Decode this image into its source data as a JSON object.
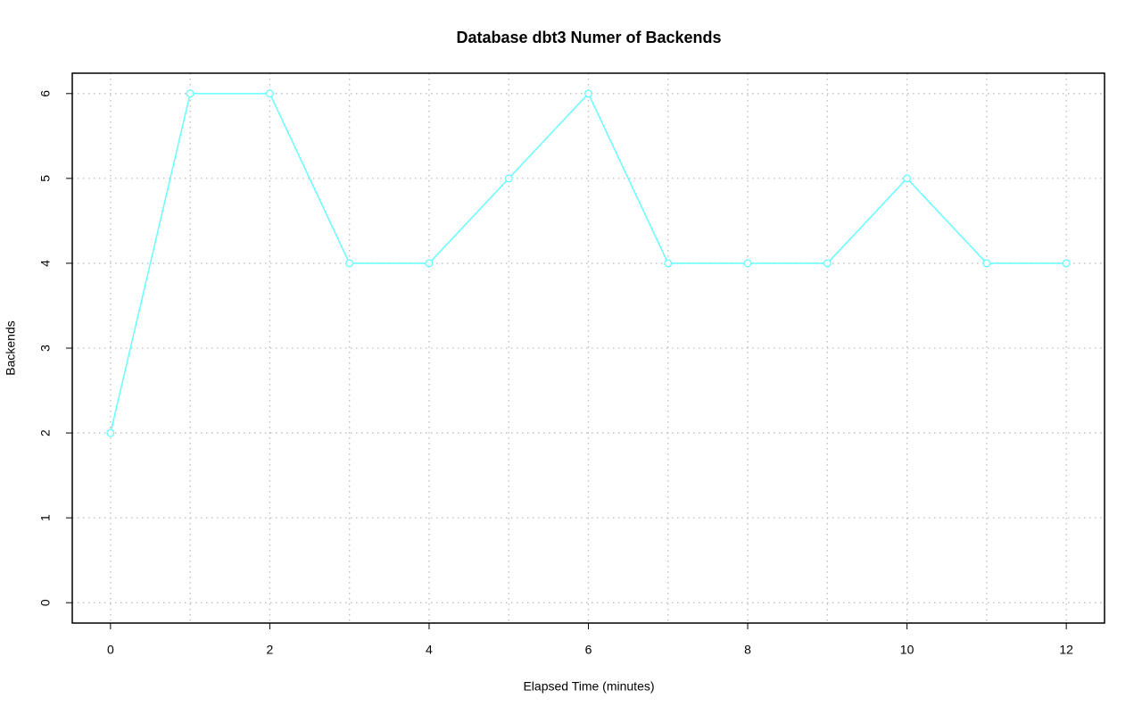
{
  "chart_data": {
    "type": "line",
    "title": "Database dbt3 Numer of Backends",
    "x_label": "Elapsed Time (minutes)",
    "y_label": "Backends",
    "x": [
      0,
      1,
      2,
      3,
      4,
      5,
      6,
      7,
      8,
      9,
      10,
      11,
      12
    ],
    "series": [
      {
        "name": "Backends",
        "color": "#66ffff",
        "values": [
          2,
          6,
          6,
          4,
          4,
          5,
          6,
          4,
          4,
          4,
          5,
          4,
          4
        ]
      }
    ],
    "xlim": [
      -0.48,
      12.48
    ],
    "xticks": [
      0,
      2,
      4,
      6,
      8,
      10,
      12
    ],
    "ylim": [
      -0.24,
      6.24
    ],
    "yticks": [
      0,
      1,
      2,
      3,
      4,
      5,
      6
    ],
    "grid": true,
    "markers": "open-circle"
  }
}
